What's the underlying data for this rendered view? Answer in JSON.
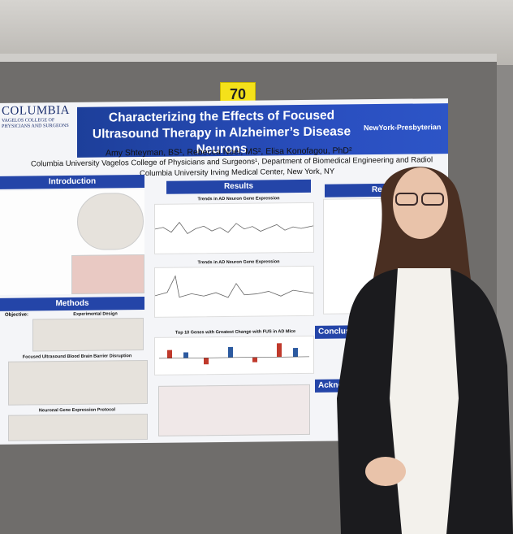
{
  "placard": "70",
  "poster": {
    "logo": {
      "name": "COLUMBIA",
      "subtitle": "VAGELOS COLLEGE OF PHYSICIANS AND SURGEONS"
    },
    "title": "Characterizing the Effects of Focused Ultrasound Therapy in Alzheimer’s Disease Neurons",
    "partner": "NewYork-Presbyterian",
    "authors": "Amy Shteyman, BS¹, Rebecca Noel, MS², Elisa Konofagou, PhD²",
    "affiliations": [
      "Columbia University Vagelos College of Physicians and Surgeons¹, Department of Biomedical Engineering and Radiol",
      "Columbia University Irving Medical Center, New York, NY"
    ],
    "sections": [
      "Introduction",
      "Results",
      "Methods",
      "Results",
      "Conclusi",
      "Ackno"
    ],
    "objective": "Objective:",
    "figures": [
      "Experimental Design",
      "Focused Ultrasound Blood Brain Barrier Disruption",
      "Neuronal Gene Expression Protocol",
      "Trends in AD Neuron Gene Expression",
      "Trends in AD Neuron Gene Expression",
      "Top 10 Genes with Greatest Change with FUS in AD Mice"
    ]
  }
}
